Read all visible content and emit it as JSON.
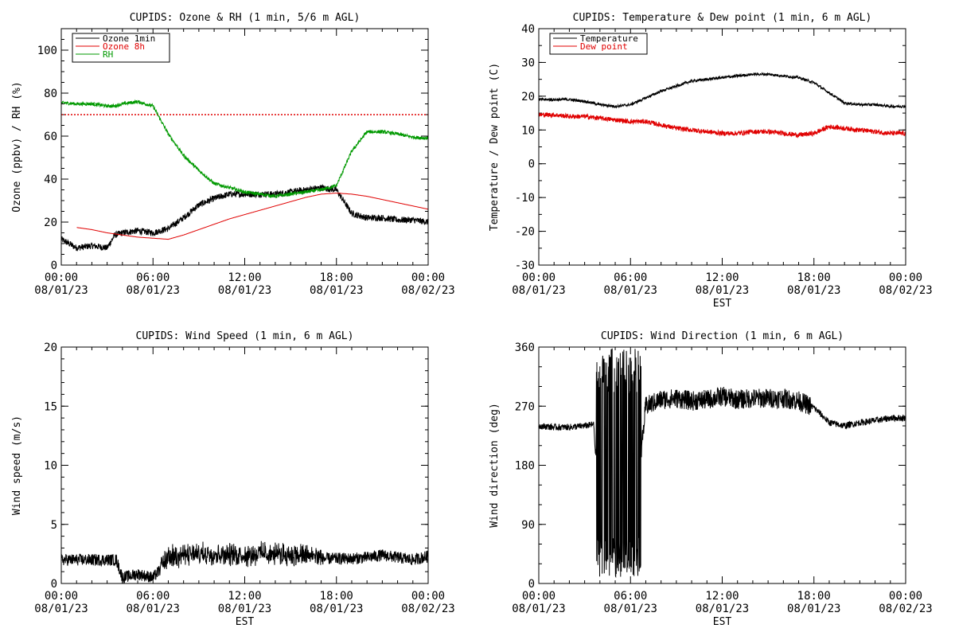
{
  "chart_data": [
    {
      "type": "line",
      "title": "CUPIDS: Ozone & RH (1 min, 5/6 m AGL)",
      "xlabel": "",
      "ylabel": "Ozone (ppbv) / RH (%)",
      "ylim": [
        0,
        110
      ],
      "yticks": [
        0,
        20,
        40,
        60,
        80,
        100
      ],
      "xticks": [
        {
          "time": "00:00",
          "date": "08/01/23"
        },
        {
          "time": "06:00",
          "date": "08/01/23"
        },
        {
          "time": "12:00",
          "date": "08/01/23"
        },
        {
          "time": "18:00",
          "date": "08/01/23"
        },
        {
          "time": "00:00",
          "date": "08/02/23"
        }
      ],
      "x_hours": [
        0,
        1,
        2,
        3,
        3.5,
        4,
        5,
        6,
        7,
        8,
        9,
        10,
        11,
        12,
        13,
        14,
        15,
        16,
        17,
        18,
        19,
        20,
        21,
        22,
        23,
        24
      ],
      "reference_line": {
        "value": 70,
        "color": "#e00000",
        "style": "dotted"
      },
      "legend": {
        "position": "top-left",
        "boxed": true
      },
      "series": [
        {
          "name": "Ozone 1min",
          "color": "#000000",
          "noise": 1.5,
          "values": [
            12,
            8,
            9,
            8,
            14,
            15,
            16,
            15,
            17,
            22,
            28,
            31,
            33,
            33,
            33,
            33,
            34,
            35,
            36,
            35,
            24,
            22,
            22,
            21,
            21,
            20
          ]
        },
        {
          "name": "Ozone 8h",
          "color": "#e00000",
          "noise": 0,
          "values": [
            null,
            17.5,
            16.5,
            15,
            14.5,
            14,
            13,
            12.5,
            12,
            14,
            16.5,
            19,
            21.5,
            23.5,
            25.5,
            27.5,
            29.5,
            31.5,
            33,
            33.5,
            33,
            32,
            30.5,
            29,
            27.5,
            26
          ]
        },
        {
          "name": "RH",
          "color": "#009900",
          "noise": 0.8,
          "values": [
            75.5,
            75,
            75,
            74,
            74,
            75,
            76,
            74,
            61,
            51,
            44,
            38,
            36,
            34,
            33,
            32,
            33,
            34,
            35,
            37,
            53,
            62,
            62,
            61,
            59.5,
            59
          ]
        }
      ]
    },
    {
      "type": "line",
      "title": "CUPIDS: Temperature & Dew point (1 min, 6 m AGL)",
      "xlabel": "EST",
      "ylabel": "Temperature / Dew point (C)",
      "ylim": [
        -30,
        40
      ],
      "yticks": [
        -30,
        -20,
        -10,
        0,
        10,
        20,
        30,
        40
      ],
      "xticks": [
        {
          "time": "00:00",
          "date": "08/01/23"
        },
        {
          "time": "06:00",
          "date": "08/01/23"
        },
        {
          "time": "12:00",
          "date": "08/01/23"
        },
        {
          "time": "18:00",
          "date": "08/01/23"
        },
        {
          "time": "00:00",
          "date": "08/02/23"
        }
      ],
      "x_hours": [
        0,
        1,
        2,
        3,
        4,
        5,
        6,
        7,
        8,
        9,
        10,
        11,
        12,
        13,
        14,
        15,
        16,
        17,
        18,
        19,
        20,
        21,
        22,
        23,
        24
      ],
      "legend": {
        "position": "top-left",
        "boxed": true
      },
      "series": [
        {
          "name": "Temperature",
          "color": "#000000",
          "noise": 0.4,
          "values": [
            19,
            19,
            19,
            18.5,
            17.5,
            17,
            17.5,
            19.5,
            21.5,
            23,
            24.5,
            25,
            25.5,
            26,
            26.5,
            26.5,
            26,
            25.5,
            24,
            21,
            18,
            17.5,
            17.5,
            17,
            17
          ]
        },
        {
          "name": "Dew point",
          "color": "#e00000",
          "noise": 0.7,
          "values": [
            14.5,
            14.5,
            14,
            14,
            13.5,
            13,
            12.5,
            12.5,
            11.5,
            10.5,
            10,
            9.5,
            9,
            9,
            9.5,
            9.5,
            9,
            8.5,
            9,
            11,
            10.5,
            10,
            9.5,
            9,
            9
          ]
        }
      ]
    },
    {
      "type": "line",
      "title": "CUPIDS: Wind Speed (1 min, 6 m AGL)",
      "xlabel": "EST",
      "ylabel": "Wind speed (m/s)",
      "ylim": [
        0,
        20
      ],
      "yticks": [
        0,
        5,
        10,
        15,
        20
      ],
      "xticks": [
        {
          "time": "00:00",
          "date": "08/01/23"
        },
        {
          "time": "06:00",
          "date": "08/01/23"
        },
        {
          "time": "12:00",
          "date": "08/01/23"
        },
        {
          "time": "18:00",
          "date": "08/01/23"
        },
        {
          "time": "00:00",
          "date": "08/02/23"
        }
      ],
      "x_hours": [
        0,
        1,
        2,
        3,
        3.6,
        4,
        5,
        6,
        6.5,
        7,
        8,
        9,
        10,
        11,
        12,
        13,
        14,
        15,
        16,
        17,
        18,
        19,
        20,
        21,
        22,
        23,
        24
      ],
      "series": [
        {
          "name": "",
          "color": "#000000",
          "noise": 0.5,
          "values": [
            2,
            2,
            2,
            2,
            2,
            0.5,
            0.8,
            0.5,
            1.2,
            2,
            2.2,
            2.2,
            2.3,
            2.2,
            2.2,
            2.3,
            2.2,
            2.2,
            2.1,
            2.1,
            2.1,
            2.1,
            2.2,
            2.4,
            2.2,
            2,
            2.3
          ]
        }
      ]
    },
    {
      "type": "line",
      "title": "CUPIDS: Wind Direction (1 min, 6 m AGL)",
      "xlabel": "EST",
      "ylabel": "Wind direction (deg)",
      "ylim": [
        0,
        360
      ],
      "yticks": [
        0,
        90,
        180,
        270,
        360
      ],
      "xticks": [
        {
          "time": "00:00",
          "date": "08/01/23"
        },
        {
          "time": "06:00",
          "date": "08/01/23"
        },
        {
          "time": "12:00",
          "date": "08/01/23"
        },
        {
          "time": "18:00",
          "date": "08/01/23"
        },
        {
          "time": "00:00",
          "date": "08/02/23"
        }
      ],
      "x_hours": [
        0,
        1,
        2,
        3,
        3.6,
        3.7,
        6.7,
        7,
        8,
        9,
        10,
        11,
        12,
        13,
        14,
        15,
        16,
        17,
        18,
        19,
        20,
        21,
        22,
        23,
        24
      ],
      "series": [
        {
          "name": "",
          "color": "#000000",
          "noise": 5,
          "values": [
            240,
            238,
            238,
            240,
            242,
            200,
            200,
            270,
            280,
            282,
            278,
            280,
            285,
            280,
            282,
            282,
            282,
            278,
            268,
            245,
            240,
            245,
            248,
            252,
            252
          ]
        }
      ]
    }
  ]
}
